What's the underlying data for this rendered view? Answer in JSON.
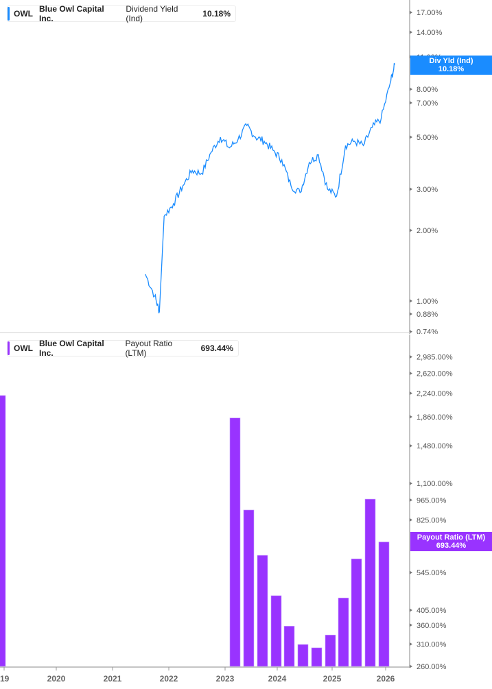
{
  "top_chart": {
    "legend": {
      "ticker": "OWL",
      "company": "Blue Owl Capital Inc.",
      "metric": "Dividend Yield (Ind)",
      "value": "10.18%",
      "color": "#1a8cff"
    },
    "current_tag": {
      "label": "Div Yld (Ind)",
      "value": "10.18%",
      "color": "#1a8cff"
    },
    "y_ticks": [
      "17.00%",
      "14.00%",
      "11.00%",
      "8.00%",
      "7.00%",
      "5.00%",
      "3.00%",
      "2.00%",
      "1.00%",
      "0.88%",
      "0.74%"
    ]
  },
  "bottom_chart": {
    "legend": {
      "ticker": "OWL",
      "company": "Blue Owl Capital Inc.",
      "metric": "Payout Ratio (LTM)",
      "value": "693.44%",
      "color": "#9933ff"
    },
    "current_tag": {
      "label": "Payout Ratio (LTM)",
      "value": "693.44%",
      "color": "#9933ff"
    },
    "y_ticks": [
      "2,985.00%",
      "2,620.00%",
      "2,240.00%",
      "1,860.00%",
      "1,480.00%",
      "1,100.00%",
      "965.00%",
      "825.00%",
      "545.00%",
      "405.00%",
      "360.00%",
      "310.00%",
      "260.00%"
    ]
  },
  "x_axis": {
    "labels": [
      "19",
      "2020",
      "2021",
      "2022",
      "2023",
      "2024",
      "2025",
      "2026"
    ]
  },
  "chart_data": [
    {
      "type": "line",
      "title": "OWL Blue Owl Capital Inc. Dividend Yield (Ind)",
      "ylabel": "Dividend Yield (%)",
      "yscale": "log",
      "ylim": [
        0.74,
        18
      ],
      "x": [
        "2021-08",
        "2021-10",
        "2021-11",
        "2021-12",
        "2022-02",
        "2022-04",
        "2022-06",
        "2022-08",
        "2022-10",
        "2022-12",
        "2023-02",
        "2023-04",
        "2023-06",
        "2023-08",
        "2023-10",
        "2023-12",
        "2024-02",
        "2024-04",
        "2024-06",
        "2024-08",
        "2024-10",
        "2024-12",
        "2025-02",
        "2025-04",
        "2025-06",
        "2025-08",
        "2025-10",
        "2025-12",
        "2026-02",
        "2026-03"
      ],
      "values": [
        1.3,
        1.05,
        0.9,
        2.3,
        2.6,
        3.1,
        3.6,
        3.5,
        4.3,
        5.0,
        4.5,
        4.9,
        5.6,
        5.0,
        4.8,
        4.4,
        4.0,
        3.1,
        2.9,
        3.9,
        4.2,
        3.0,
        2.8,
        4.6,
        4.8,
        4.6,
        5.5,
        6.0,
        8.5,
        10.18
      ],
      "current_value": 10.18
    },
    {
      "type": "bar",
      "title": "OWL Blue Owl Capital Inc. Payout Ratio (LTM)",
      "ylabel": "Payout Ratio (%)",
      "yscale": "log",
      "ylim": [
        260,
        3200
      ],
      "categories": [
        "2019-Q4",
        "2023-Q1",
        "2023-Q2",
        "2023-Q3",
        "2023-Q4",
        "2024-Q1",
        "2024-Q2",
        "2024-Q3",
        "2024-Q4",
        "2025-Q1",
        "2025-Q2",
        "2025-Q3",
        "2025-Q4"
      ],
      "values": [
        2200,
        1843,
        892,
        624,
        454,
        357,
        309,
        301,
        333,
        446,
        607,
        972,
        693.44
      ],
      "current_value": 693.44
    }
  ]
}
